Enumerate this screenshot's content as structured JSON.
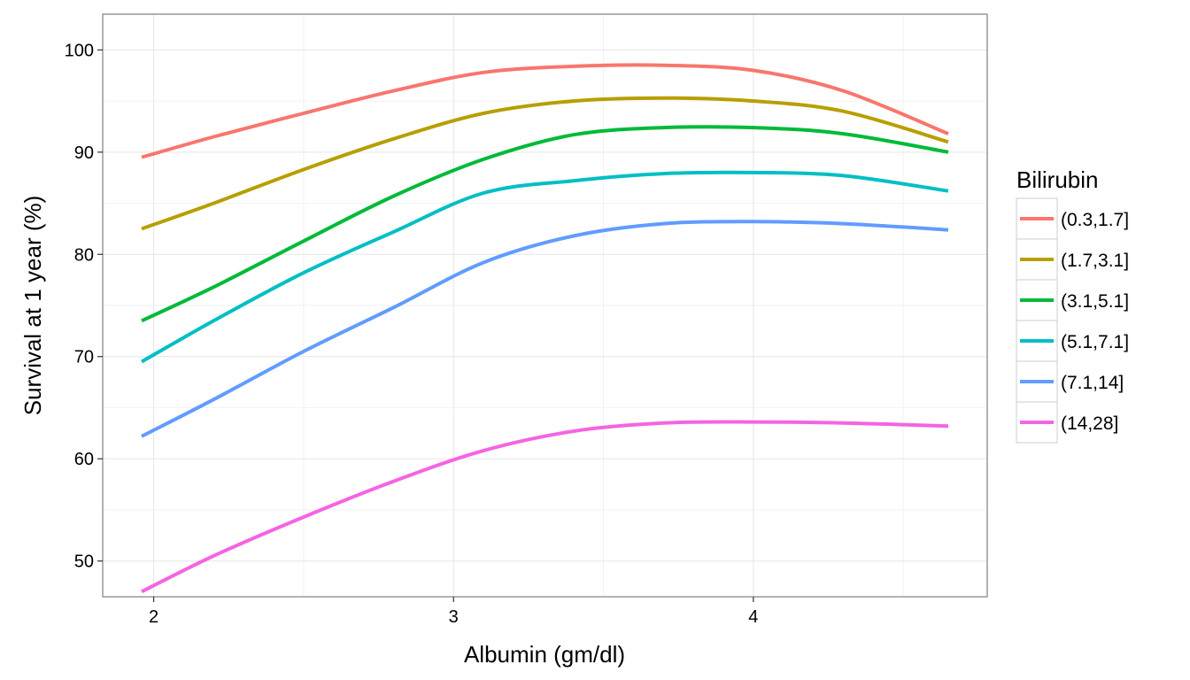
{
  "chart_data": {
    "type": "line",
    "title": "",
    "xlabel": "Albumin (gm/dl)",
    "ylabel": "Survival at 1 year (%)",
    "xlim": [
      1.83,
      4.78
    ],
    "ylim": [
      46.5,
      103.5
    ],
    "x_ticks": [
      2,
      3,
      4
    ],
    "y_ticks": [
      50,
      60,
      70,
      80,
      90,
      100
    ],
    "grid": true,
    "legend": {
      "title": "Bilirubin",
      "position": "right"
    },
    "series": [
      {
        "name": "(0.3,1.7]",
        "color": "#F8766D",
        "x": [
          1.96,
          2.2,
          2.5,
          2.8,
          3.1,
          3.4,
          3.7,
          4.0,
          4.3,
          4.65
        ],
        "y": [
          89.5,
          91.5,
          93.8,
          96.0,
          97.8,
          98.4,
          98.5,
          98.0,
          96.0,
          91.8
        ]
      },
      {
        "name": "(1.7,3.1]",
        "color": "#B79F00",
        "x": [
          1.96,
          2.2,
          2.5,
          2.8,
          3.1,
          3.4,
          3.7,
          4.0,
          4.3,
          4.65
        ],
        "y": [
          82.5,
          85.0,
          88.3,
          91.3,
          93.8,
          95.0,
          95.3,
          95.0,
          94.0,
          91.0
        ]
      },
      {
        "name": "(3.1,5.1]",
        "color": "#00BA38",
        "x": [
          1.96,
          2.2,
          2.5,
          2.8,
          3.1,
          3.4,
          3.7,
          4.0,
          4.3,
          4.65
        ],
        "y": [
          73.5,
          76.8,
          81.3,
          85.7,
          89.3,
          91.7,
          92.4,
          92.4,
          91.8,
          90.0
        ]
      },
      {
        "name": "(5.1,7.1]",
        "color": "#00BFC4",
        "x": [
          1.96,
          2.2,
          2.5,
          2.8,
          3.1,
          3.4,
          3.7,
          4.0,
          4.3,
          4.65
        ],
        "y": [
          69.5,
          73.5,
          78.2,
          82.2,
          86.0,
          87.2,
          87.9,
          88.0,
          87.7,
          86.2
        ]
      },
      {
        "name": "(7.1,14]",
        "color": "#619CFF",
        "x": [
          1.96,
          2.2,
          2.5,
          2.8,
          3.1,
          3.4,
          3.7,
          4.0,
          4.3,
          4.65
        ],
        "y": [
          62.2,
          65.8,
          70.5,
          74.8,
          79.2,
          81.8,
          83.0,
          83.2,
          83.0,
          82.4
        ]
      },
      {
        "name": "(14,28]",
        "color": "#F564E3",
        "x": [
          1.96,
          2.2,
          2.5,
          2.8,
          3.1,
          3.4,
          3.7,
          4.0,
          4.3,
          4.65
        ],
        "y": [
          47.0,
          50.5,
          54.3,
          57.8,
          60.8,
          62.7,
          63.5,
          63.6,
          63.5,
          63.2
        ]
      }
    ]
  }
}
